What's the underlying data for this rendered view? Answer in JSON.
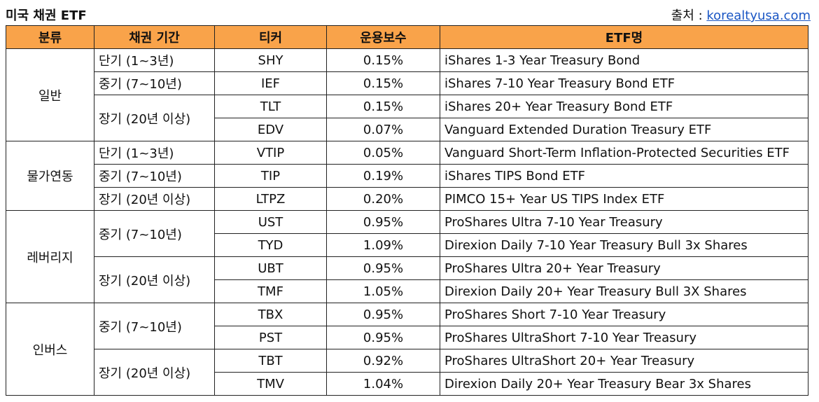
{
  "title": "미국 채권 ETF",
  "source_label": "출처 :",
  "source_link": "korealtyusa.com",
  "headers": [
    "분류",
    "채권 기간",
    "티커",
    "운용보수",
    "ETF명"
  ],
  "groups": [
    {
      "category": "일반",
      "terms": [
        {
          "term": "단기 (1~3년)",
          "rows": [
            {
              "ticker": "SHY",
              "fee": "0.15%",
              "name": "iShares 1-3 Year Treasury Bond"
            }
          ]
        },
        {
          "term": "중기 (7~10년)",
          "rows": [
            {
              "ticker": "IEF",
              "fee": "0.15%",
              "name": "iShares 7-10 Year Treasury Bond ETF"
            }
          ]
        },
        {
          "term": "장기 (20년 이상)",
          "rows": [
            {
              "ticker": "TLT",
              "fee": "0.15%",
              "name": "iShares 20+ Year Treasury Bond ETF"
            },
            {
              "ticker": "EDV",
              "fee": "0.07%",
              "name": "Vanguard Extended Duration Treasury ETF"
            }
          ]
        }
      ]
    },
    {
      "category": "물가연동",
      "terms": [
        {
          "term": "단기 (1~3년)",
          "rows": [
            {
              "ticker": "VTIP",
              "fee": "0.05%",
              "name": "Vanguard Short-Term Inflation-Protected Securities ETF"
            }
          ]
        },
        {
          "term": "중기 (7~10년)",
          "rows": [
            {
              "ticker": "TIP",
              "fee": "0.19%",
              "name": "iShares TIPS Bond ETF"
            }
          ]
        },
        {
          "term": "장기 (20년 이상)",
          "rows": [
            {
              "ticker": "LTPZ",
              "fee": "0.20%",
              "name": "PIMCO 15+ Year US TIPS Index ETF"
            }
          ]
        }
      ]
    },
    {
      "category": "레버리지",
      "terms": [
        {
          "term": "중기 (7~10년)",
          "rows": [
            {
              "ticker": "UST",
              "fee": "0.95%",
              "name": "ProShares Ultra 7-10 Year Treasury"
            },
            {
              "ticker": "TYD",
              "fee": "1.09%",
              "name": "Direxion Daily 7-10 Year Treasury Bull 3x Shares"
            }
          ]
        },
        {
          "term": "장기 (20년 이상)",
          "rows": [
            {
              "ticker": "UBT",
              "fee": "0.95%",
              "name": "ProShares Ultra 20+ Year Treasury"
            },
            {
              "ticker": "TMF",
              "fee": "1.05%",
              "name": "Direxion Daily 20+ Year Treasury Bull 3X Shares"
            }
          ]
        }
      ]
    },
    {
      "category": "인버스",
      "terms": [
        {
          "term": "중기 (7~10년)",
          "rows": [
            {
              "ticker": "TBX",
              "fee": "0.95%",
              "name": "ProShares Short 7-10 Year Treasury"
            },
            {
              "ticker": "PST",
              "fee": "0.95%",
              "name": "ProShares UltraShort 7-10 Year Treasury"
            }
          ]
        },
        {
          "term": "장기 (20년 이상)",
          "rows": [
            {
              "ticker": "TBT",
              "fee": "0.92%",
              "name": "ProShares UltraShort 20+ Year Treasury"
            },
            {
              "ticker": "TMV",
              "fee": "1.04%",
              "name": "Direxion Daily 20+ Year Treasury Bear 3x Shares"
            }
          ]
        }
      ]
    }
  ],
  "colors": {
    "header_bg": "#f9a34a",
    "link": "#1a56c4",
    "border": "#222222"
  }
}
